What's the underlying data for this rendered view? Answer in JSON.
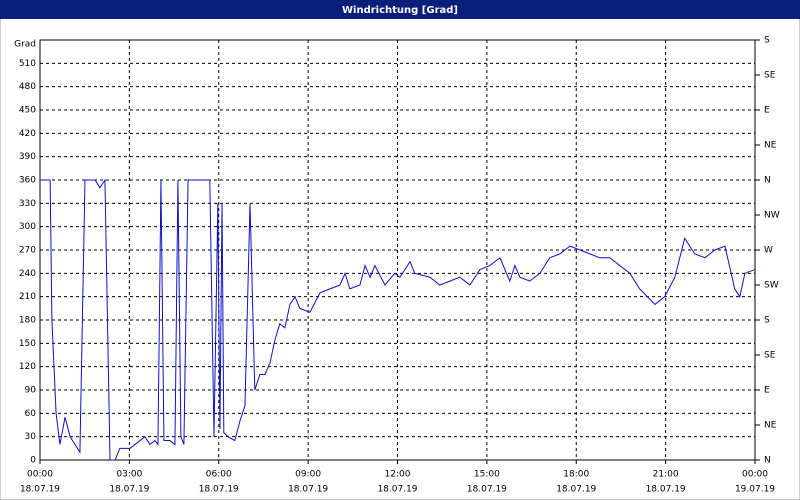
{
  "chart_data": {
    "type": "line",
    "title": "Windrichtung [Grad]",
    "y_label": "Grad",
    "color": "#1010c8",
    "grid": true,
    "x": [
      0,
      0.34,
      0.4,
      0.54,
      0.67,
      0.84,
      1.01,
      1.34,
      1.51,
      1.85,
      2.01,
      2.18,
      2.35,
      2.52,
      2.68,
      3.02,
      3.36,
      3.52,
      3.69,
      3.86,
      3.96,
      4.06,
      4.16,
      4.36,
      4.53,
      4.63,
      4.73,
      4.83,
      4.97,
      5.03,
      5.54,
      5.7,
      5.84,
      5.97,
      6.04,
      6.11,
      6.17,
      6.31,
      6.54,
      6.71,
      6.88,
      7.05,
      7.21,
      7.38,
      7.55,
      7.72,
      7.89,
      8.05,
      8.22,
      8.39,
      8.56,
      8.72,
      9.06,
      9.4,
      9.73,
      10.07,
      10.24,
      10.4,
      10.74,
      10.91,
      11.08,
      11.24,
      11.58,
      11.91,
      12.08,
      12.42,
      12.58,
      13.09,
      13.42,
      13.76,
      14.09,
      14.43,
      14.77,
      15.1,
      15.44,
      15.77,
      15.94,
      16.11,
      16.44,
      16.78,
      17.11,
      17.45,
      17.79,
      18.12,
      18.46,
      18.79,
      19.13,
      19.46,
      19.8,
      20.13,
      20.64,
      20.97,
      21.31,
      21.64,
      21.98,
      22.32,
      22.65,
      22.99,
      23.32,
      23.49,
      23.66,
      24
    ],
    "values": [
      360,
      360,
      180,
      60,
      20,
      55,
      30,
      10,
      360,
      360,
      350,
      360,
      0,
      0,
      15,
      15,
      25,
      30,
      20,
      25,
      20,
      360,
      25,
      25,
      20,
      360,
      30,
      20,
      360,
      360,
      360,
      360,
      30,
      330,
      40,
      330,
      35,
      30,
      25,
      50,
      70,
      330,
      90,
      110,
      110,
      125,
      155,
      175,
      170,
      200,
      210,
      195,
      190,
      215,
      220,
      225,
      240,
      220,
      225,
      250,
      235,
      250,
      225,
      240,
      235,
      255,
      240,
      235,
      225,
      230,
      235,
      225,
      245,
      250,
      260,
      230,
      250,
      235,
      230,
      240,
      260,
      265,
      275,
      270,
      265,
      260,
      260,
      250,
      240,
      220,
      200,
      210,
      235,
      285,
      265,
      260,
      270,
      275,
      220,
      210,
      240,
      245
    ],
    "xlim": [
      0,
      24
    ],
    "xticks": [
      {
        "value": 0,
        "label": "00:00",
        "date": "18.07.19"
      },
      {
        "value": 3,
        "label": "03:00",
        "date": "18.07.19"
      },
      {
        "value": 6,
        "label": "06:00",
        "date": "18.07.19"
      },
      {
        "value": 9,
        "label": "09:00",
        "date": "18.07.19"
      },
      {
        "value": 12,
        "label": "12:00",
        "date": "18.07.19"
      },
      {
        "value": 15,
        "label": "15:00",
        "date": "18.07.19"
      },
      {
        "value": 18,
        "label": "18:00",
        "date": "18.07.19"
      },
      {
        "value": 21,
        "label": "21:00",
        "date": "18.07.19"
      },
      {
        "value": 24,
        "label": "00:00",
        "date": "19.07.19"
      }
    ],
    "ylim": [
      0,
      540
    ],
    "yticks": [
      0,
      30,
      60,
      90,
      120,
      150,
      180,
      210,
      240,
      270,
      300,
      330,
      360,
      390,
      420,
      450,
      480,
      510
    ],
    "y2lim": [
      0,
      540
    ],
    "y2ticks": [
      {
        "value": 0,
        "label": "N"
      },
      {
        "value": 45,
        "label": "NE"
      },
      {
        "value": 90,
        "label": "E"
      },
      {
        "value": 135,
        "label": "SE"
      },
      {
        "value": 180,
        "label": "S"
      },
      {
        "value": 225,
        "label": "SW"
      },
      {
        "value": 270,
        "label": "W"
      },
      {
        "value": 315,
        "label": "NW"
      },
      {
        "value": 360,
        "label": "N"
      },
      {
        "value": 405,
        "label": "NE"
      },
      {
        "value": 450,
        "label": "E"
      },
      {
        "value": 495,
        "label": "SE"
      },
      {
        "value": 540,
        "label": "S"
      }
    ]
  }
}
